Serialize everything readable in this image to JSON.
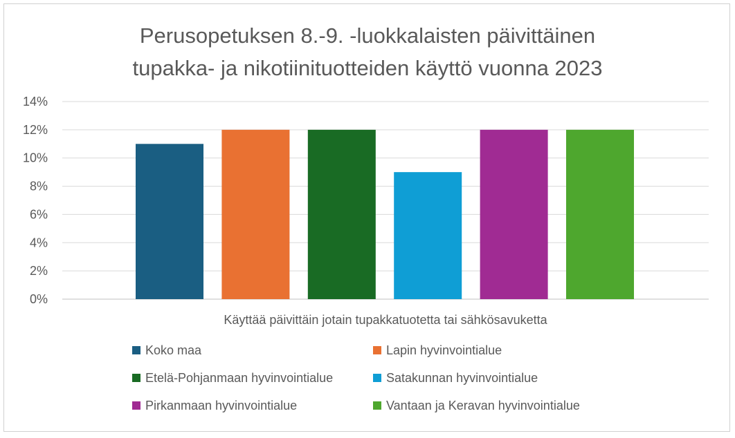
{
  "chart_data": {
    "type": "bar",
    "title_lines": [
      "Perusopetuksen 8.-9. -luokkalaisten päivittäinen",
      "tupakka- ja nikotiinituotteiden käyttö vuonna 2023"
    ],
    "categories": [
      "Käyttää päivittäin jotain tupakkatuotetta tai sähkösavuketta"
    ],
    "series": [
      {
        "name": "Koko maa",
        "values": [
          11
        ],
        "color": "#1a5e82"
      },
      {
        "name": "Lapin hyvinvointialue",
        "values": [
          12
        ],
        "color": "#e97132"
      },
      {
        "name": "Etelä-Pohjanmaan hyvinvointialue",
        "values": [
          12
        ],
        "color": "#196b24"
      },
      {
        "name": "Satakunnan hyvinvointialue",
        "values": [
          9
        ],
        "color": "#0f9ed5"
      },
      {
        "name": "Pirkanmaan hyvinvointialue",
        "values": [
          12
        ],
        "color": "#a02b93"
      },
      {
        "name": "Vantaan ja Keravan hyvinvointialue",
        "values": [
          12
        ],
        "color": "#4ea72e"
      }
    ],
    "ylim": [
      0,
      14
    ],
    "yticks": [
      0,
      2,
      4,
      6,
      8,
      10,
      12,
      14
    ],
    "ytick_suffix": "%",
    "grid": true,
    "legend_position": "bottom"
  }
}
